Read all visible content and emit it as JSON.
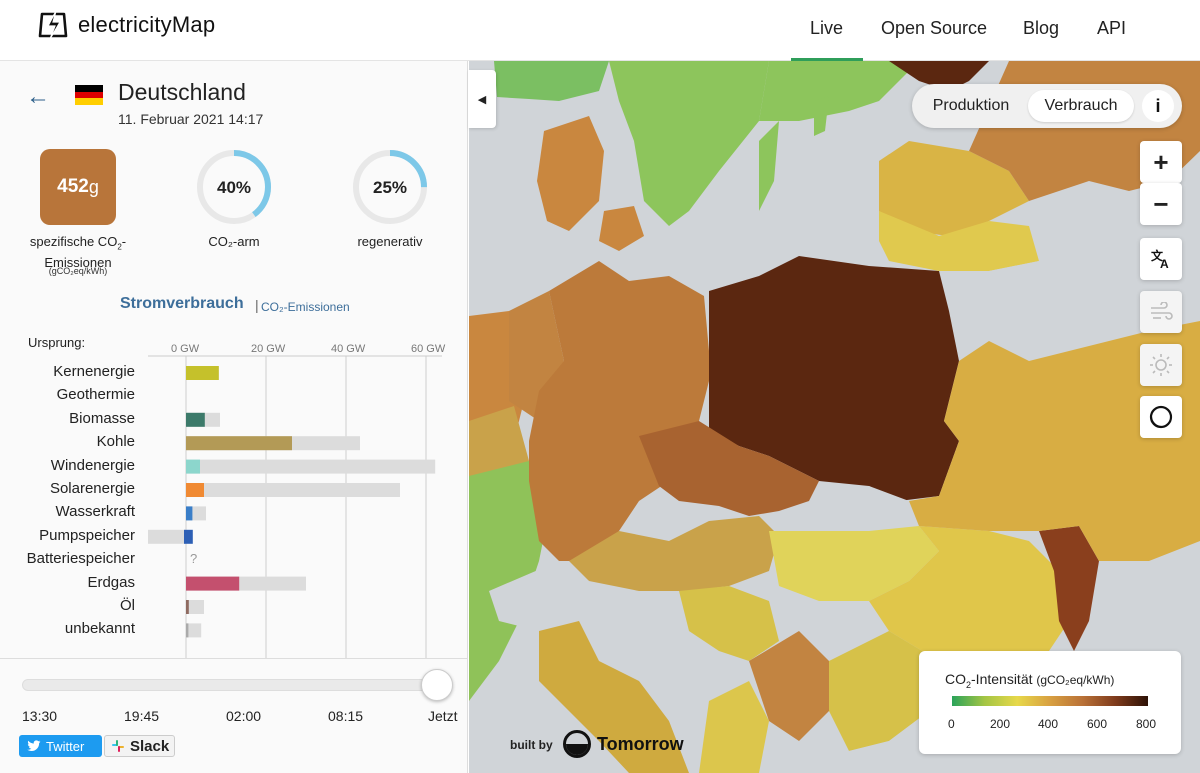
{
  "app": {
    "name": "electricityMap"
  },
  "nav": {
    "live": "Live",
    "open_source": "Open Source",
    "blog": "Blog",
    "api": "API"
  },
  "zone": {
    "name": "Deutschland",
    "datetime": "11. Februar 2021 14:17",
    "co2_intensity_value": "452",
    "co2_intensity_unit": "g",
    "co2_label_1": "spezifische CO",
    "co2_label_sub": "2",
    "co2_label_2": "-",
    "co2_label_3": "Emissionen",
    "co2_unit_label": "(gCO₂eq/kWh)",
    "low_carbon_value": "40%",
    "low_carbon_pct": 40,
    "low_carbon_label": "CO₂-arm",
    "renewable_value": "25%",
    "renewable_pct": 25,
    "renewable_label": "regenerativ",
    "flag_colors": [
      "#000000",
      "#dd0000",
      "#ffce00"
    ]
  },
  "tabs": {
    "consumption": "Stromverbrauch",
    "separator": "|",
    "emissions": "CO₂-Emissionen"
  },
  "chart_data": {
    "type": "bar",
    "title": "Stromverbrauch",
    "ylabel": "Ursprung:",
    "axis_ticks": [
      "0 GW",
      "20 GW",
      "40 GW",
      "60 GW"
    ],
    "xlim": [
      -10,
      65
    ],
    "categories": [
      "Kernenergie",
      "Geothermie",
      "Biomasse",
      "Kohle",
      "Windenergie",
      "Solarenergie",
      "Wasserkraft",
      "Pumpspeicher",
      "Batteriespeicher",
      "Erdgas",
      "Öl",
      "unbekannt"
    ],
    "series": [
      {
        "name": "Produktion",
        "values": [
          8.2,
          0,
          4.7,
          26.5,
          3.5,
          4.5,
          1.6,
          1.7,
          null,
          13.3,
          0.7,
          0.6
        ]
      },
      {
        "name": "Kapazität",
        "values": [
          8.2,
          0,
          8.5,
          43.5,
          62.3,
          53.5,
          5.0,
          -9.5,
          null,
          30.0,
          4.5,
          3.8
        ]
      }
    ],
    "pumped_storage_prod": [
      -0.5,
      1.7
    ],
    "colors": [
      "#c5c12b",
      "#b4463c",
      "#3c7a6a",
      "#b39a56",
      "#8cd6cc",
      "#f08a33",
      "#3a7ec8",
      "#2d5fb5",
      "#9a9a9a",
      "#c4506e",
      "#8f6a60",
      "#aaaaaa"
    ],
    "capacity_color": "#dcdcdc",
    "missing_marker": "?"
  },
  "timeline": {
    "labels": [
      "13:30",
      "19:45",
      "02:00",
      "08:15",
      "Jetzt"
    ],
    "position": 1.0
  },
  "share": {
    "twitter": "Twitter",
    "slack": "Slack"
  },
  "map": {
    "mode_production": "Produktion",
    "mode_consumption": "Verbrauch",
    "info": "i",
    "zoom_in": "+",
    "zoom_out": "−",
    "buttons": [
      "zoom-in",
      "zoom-out",
      "language",
      "wind",
      "solar",
      "theme"
    ]
  },
  "legend": {
    "title": "CO",
    "title_sub": "2",
    "title_rest": "-Intensität",
    "unit": "(gCO₂eq/kWh)",
    "ticks": [
      "0",
      "200",
      "400",
      "600",
      "800"
    ]
  },
  "footer": {
    "built_by": "built by",
    "partner": "Tomorrow"
  }
}
